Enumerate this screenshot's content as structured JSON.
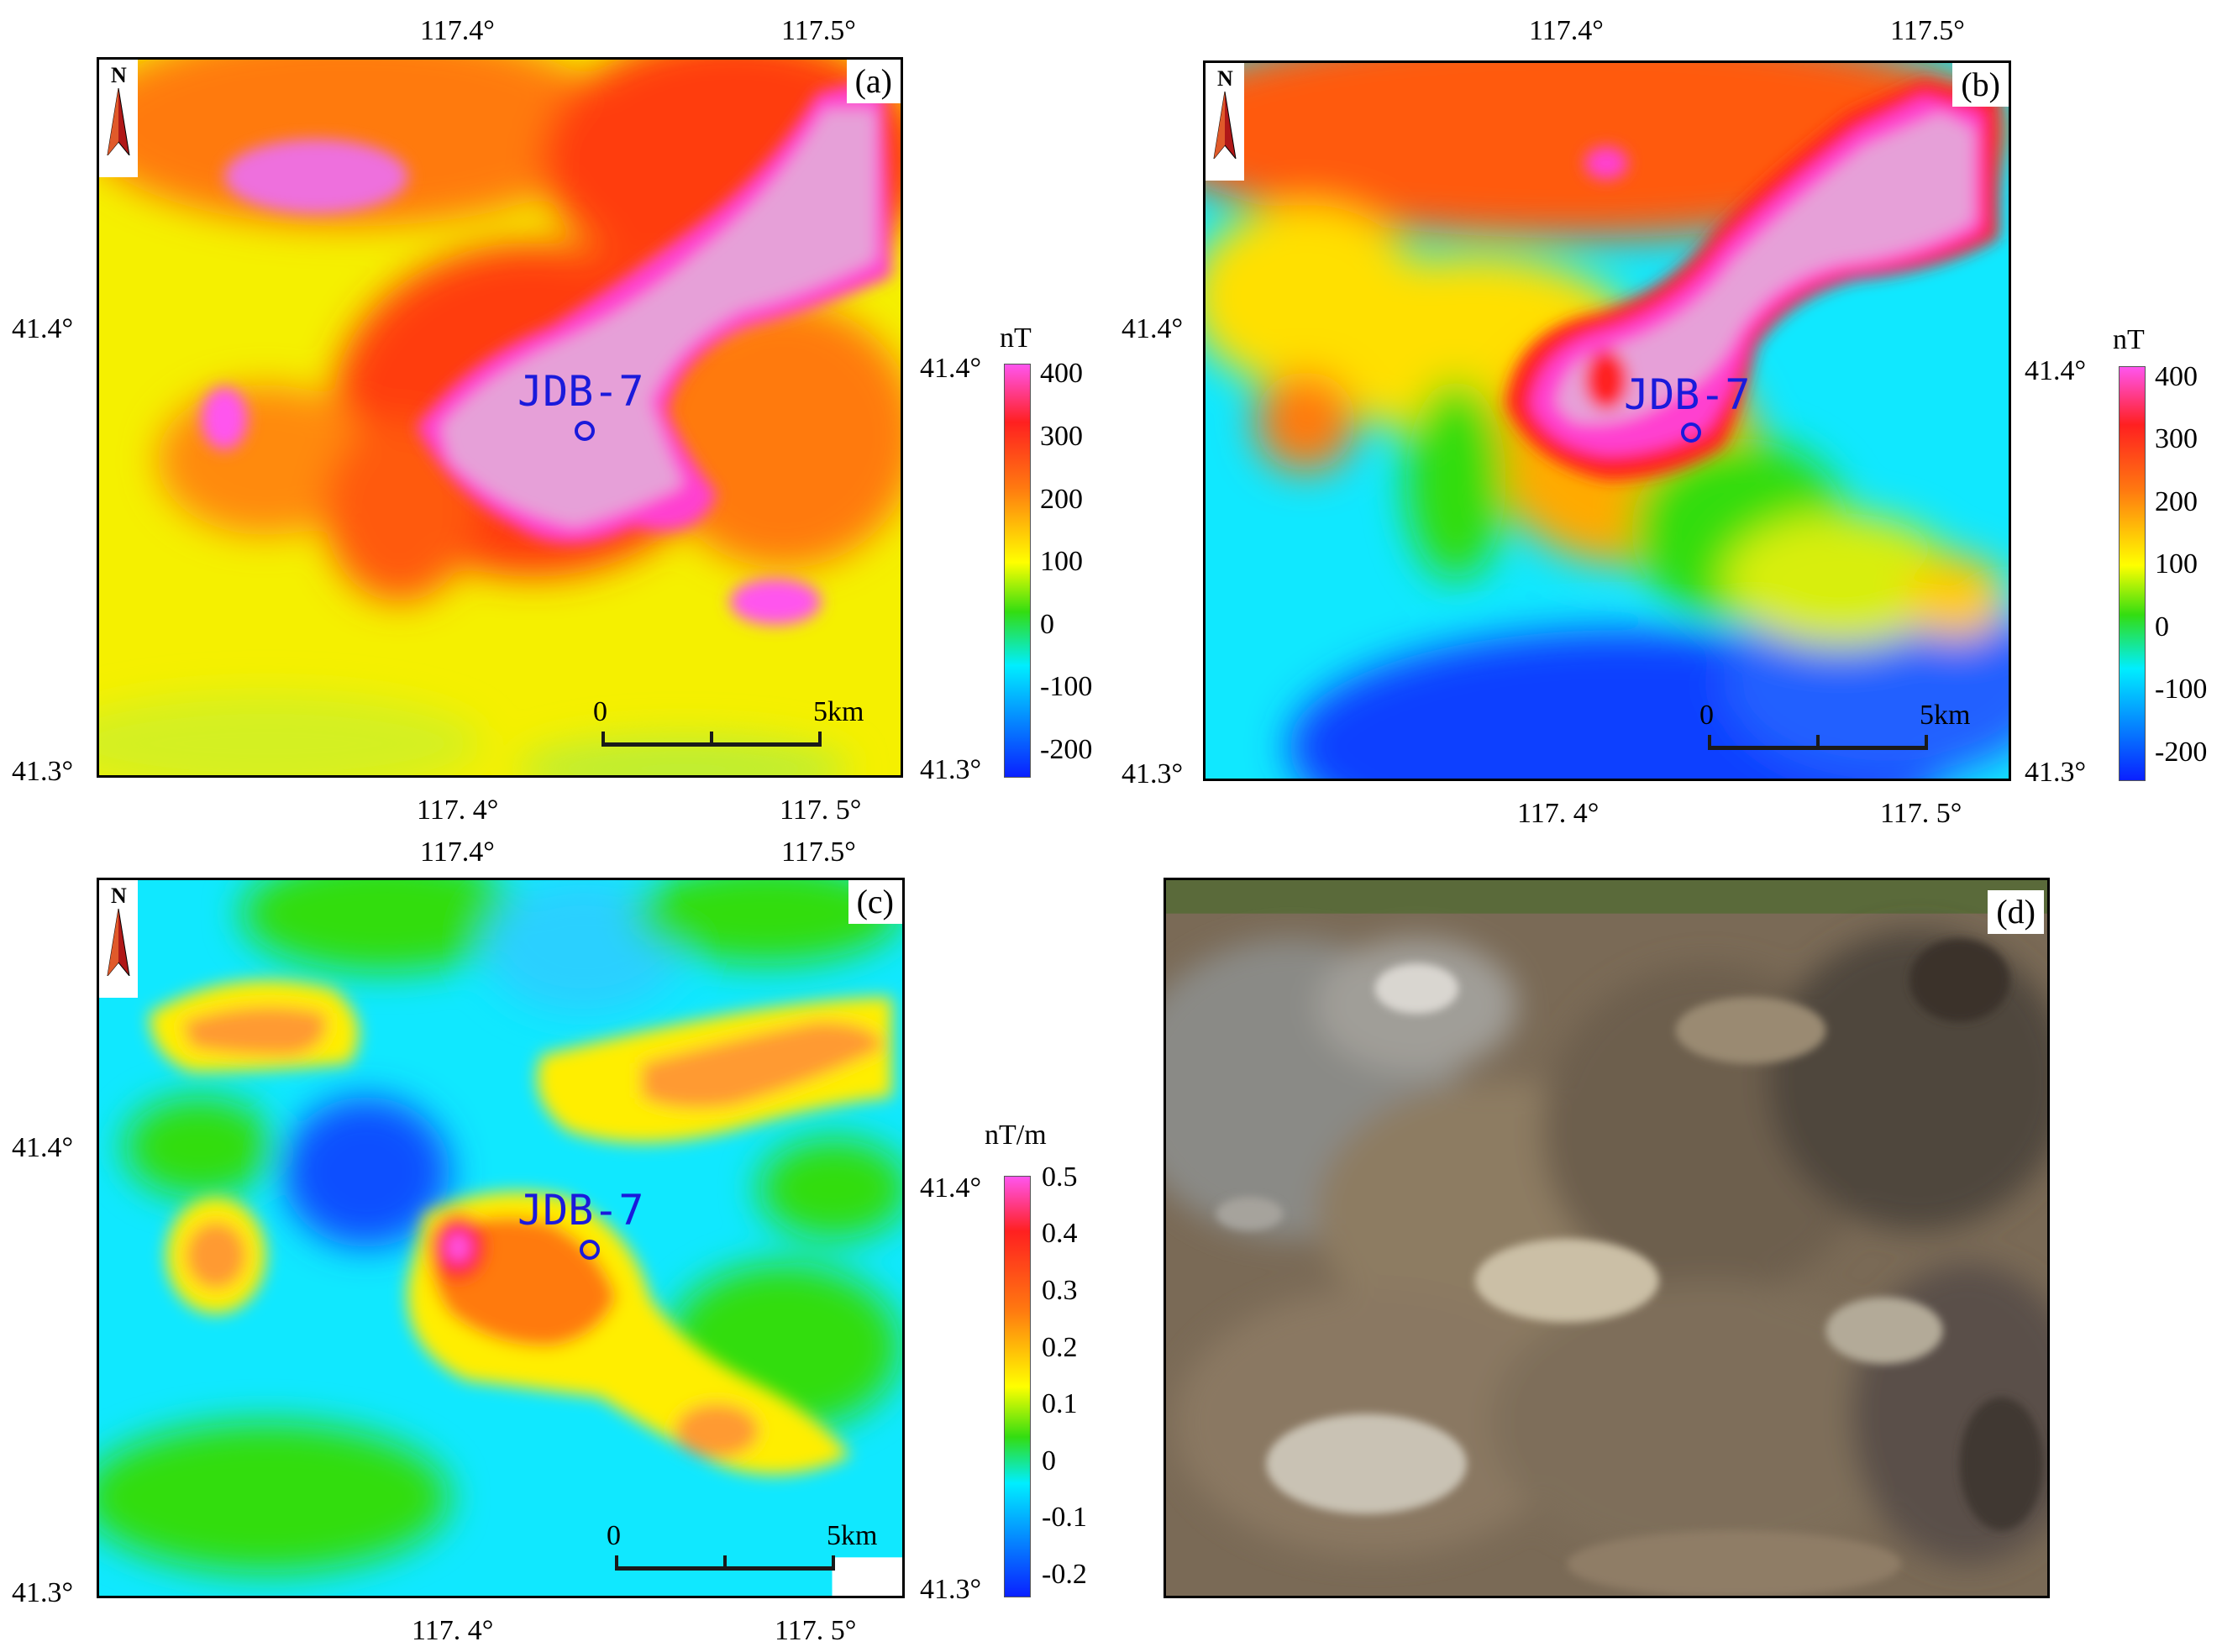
{
  "panels": {
    "a": {
      "tag": "(a)",
      "x_ticks_top": [
        "117.4°",
        "117.5°"
      ],
      "x_ticks_bottom": [
        "117. 4°",
        "117. 5°"
      ],
      "y_ticks_left": [
        "41.4°",
        "41.3°"
      ],
      "y_ticks_right": [
        "41.4°",
        "41.3°"
      ],
      "site_label": "JDB-7",
      "scale": {
        "start": "0",
        "end": "5km"
      },
      "colorbar": {
        "unit": "nT",
        "ticks": [
          "400",
          "300",
          "200",
          "100",
          "0",
          "-100",
          "-200"
        ]
      }
    },
    "b": {
      "tag": "(b)",
      "x_ticks_top": [
        "117.4°",
        "117.5°"
      ],
      "x_ticks_bottom": [
        "117. 4°",
        "117. 5°"
      ],
      "y_ticks_left": [
        "41.4°",
        "41.3°"
      ],
      "y_ticks_right": [
        "41.4°",
        "41.3°"
      ],
      "site_label": "JDB-7",
      "scale": {
        "start": "0",
        "end": "5km"
      },
      "colorbar": {
        "unit": "nT",
        "ticks": [
          "400",
          "300",
          "200",
          "100",
          "0",
          "-100",
          "-200"
        ]
      }
    },
    "c": {
      "tag": "(c)",
      "x_ticks_top": [
        "117.4°",
        "117.5°"
      ],
      "x_ticks_bottom": [
        "117. 4°",
        "117. 5°"
      ],
      "y_ticks_left": [
        "41.4°",
        "41.3°"
      ],
      "y_ticks_right": [
        "41.4°",
        "41.3°"
      ],
      "site_label": "JDB-7",
      "scale": {
        "start": "0",
        "end": "5km"
      },
      "colorbar": {
        "unit": "nT/m",
        "ticks": [
          "0.5",
          "0.4",
          "0.3",
          "0.2",
          "0.1",
          "0",
          "-0.1",
          "-0.2"
        ]
      }
    },
    "d": {
      "tag": "(d)"
    }
  },
  "north_arrow_letter": "N",
  "colors": {
    "site": "#1a1adb",
    "colorscale": [
      "#ff55ee",
      "#ff2020",
      "#ff7a10",
      "#ffff00",
      "#33dd11",
      "#00eeff",
      "#0a20ff"
    ]
  }
}
